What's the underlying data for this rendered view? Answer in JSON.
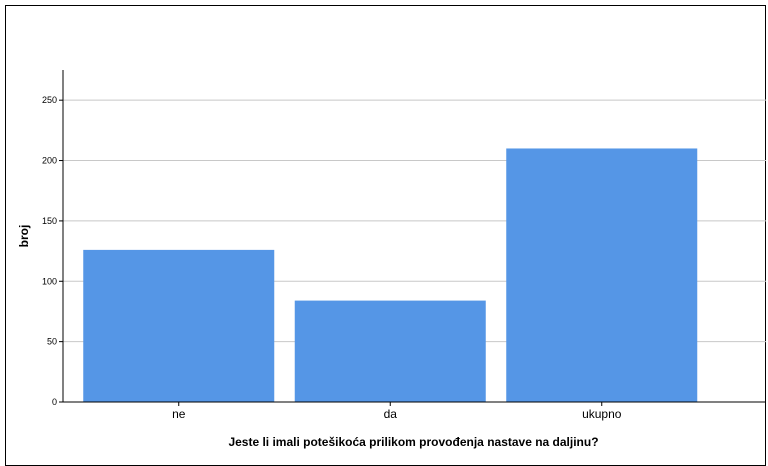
{
  "chart_data": {
    "type": "bar",
    "categories": [
      "ne",
      "da",
      "ukupno"
    ],
    "values": [
      126,
      84,
      210
    ],
    "xlabel": "Jeste li imali potešikoća prilikom provođenja nastave na daljinu?",
    "ylabel": "broj",
    "ylim": [
      0,
      275
    ],
    "yticks": [
      0,
      50,
      100,
      150,
      200,
      250
    ],
    "grid": true,
    "bar_color": "#5596e6",
    "grid_color": "#c8c8c8",
    "axis_color": "#000000"
  }
}
